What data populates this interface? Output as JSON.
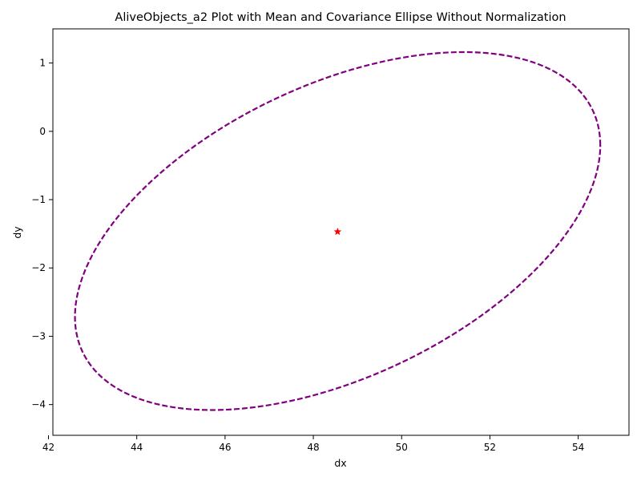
{
  "chart_data": {
    "type": "scatter",
    "title": "AliveObjects_a2 Plot with Mean and Covariance Ellipse Without Normalization",
    "xlabel": "dx",
    "ylabel": "dy",
    "xlim": [
      42.1,
      55.15
    ],
    "ylim": [
      -4.45,
      1.5
    ],
    "xticks": [
      42,
      44,
      46,
      48,
      50,
      52,
      54
    ],
    "yticks": [
      1,
      0,
      -1,
      -2,
      -3,
      -4
    ],
    "xtick_labels": [
      "42",
      "44",
      "46",
      "48",
      "50",
      "52",
      "54"
    ],
    "ytick_labels": [
      "1",
      "0",
      "−1",
      "−2",
      "−3",
      "−4"
    ],
    "grid": false,
    "mean": {
      "x": 48.55,
      "y": -1.47,
      "marker": "star",
      "color": "#ff0000"
    },
    "ellipse": {
      "center": [
        48.55,
        -1.46
      ],
      "x_extent": [
        42.6,
        54.5
      ],
      "y_extent": [
        -4.08,
        1.16
      ],
      "line_style": "dashed",
      "color": "#800080"
    }
  }
}
